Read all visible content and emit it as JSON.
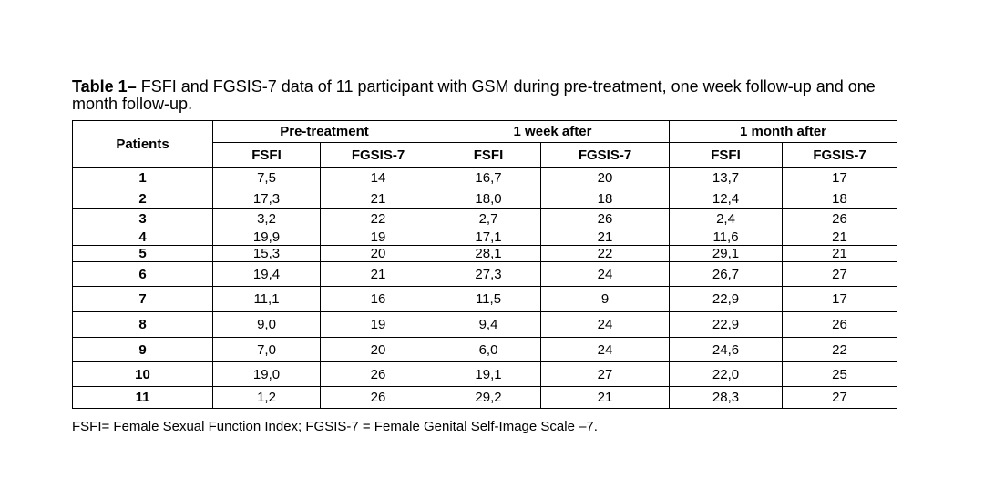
{
  "caption": {
    "label": "Table 1–",
    "text": " FSFI and FGSIS-7 data of 11 participant with GSM during pre-treatment, one week follow-up and one month follow-up."
  },
  "table": {
    "patients_header": "Patients",
    "groups": [
      "Pre-treatment",
      "1 week after",
      "1 month after"
    ],
    "subheaders": [
      "FSFI",
      "FGSIS-7",
      "FSFI",
      "FGSIS-7",
      "FSFI",
      "FGSIS-7"
    ],
    "rows": [
      [
        "1",
        "7,5",
        "14",
        "16,7",
        "20",
        "13,7",
        "17"
      ],
      [
        "2",
        "17,3",
        "21",
        "18,0",
        "18",
        "12,4",
        "18"
      ],
      [
        "3",
        "3,2",
        "22",
        "2,7",
        "26",
        "2,4",
        "26"
      ],
      [
        "4",
        "19,9",
        "19",
        "17,1",
        "21",
        "11,6",
        "21"
      ],
      [
        "5",
        "15,3",
        "20",
        "28,1",
        "22",
        "29,1",
        "21"
      ],
      [
        "6",
        "19,4",
        "21",
        "27,3",
        "24",
        "26,7",
        "27"
      ],
      [
        "7",
        "11,1",
        "16",
        "11,5",
        "9",
        "22,9",
        "17"
      ],
      [
        "8",
        "9,0",
        "19",
        "9,4",
        "24",
        "22,9",
        "26"
      ],
      [
        "9",
        "7,0",
        "20",
        "6,0",
        "24",
        "24,6",
        "22"
      ],
      [
        "10",
        "19,0",
        "26",
        "19,1",
        "27",
        "22,0",
        "25"
      ],
      [
        "11",
        "1,2",
        "26",
        "29,2",
        "21",
        "28,3",
        "27"
      ]
    ]
  },
  "footnote": "FSFI= Female Sexual Function Index; FGSIS-7 = Female Genital Self-Image Scale –7."
}
